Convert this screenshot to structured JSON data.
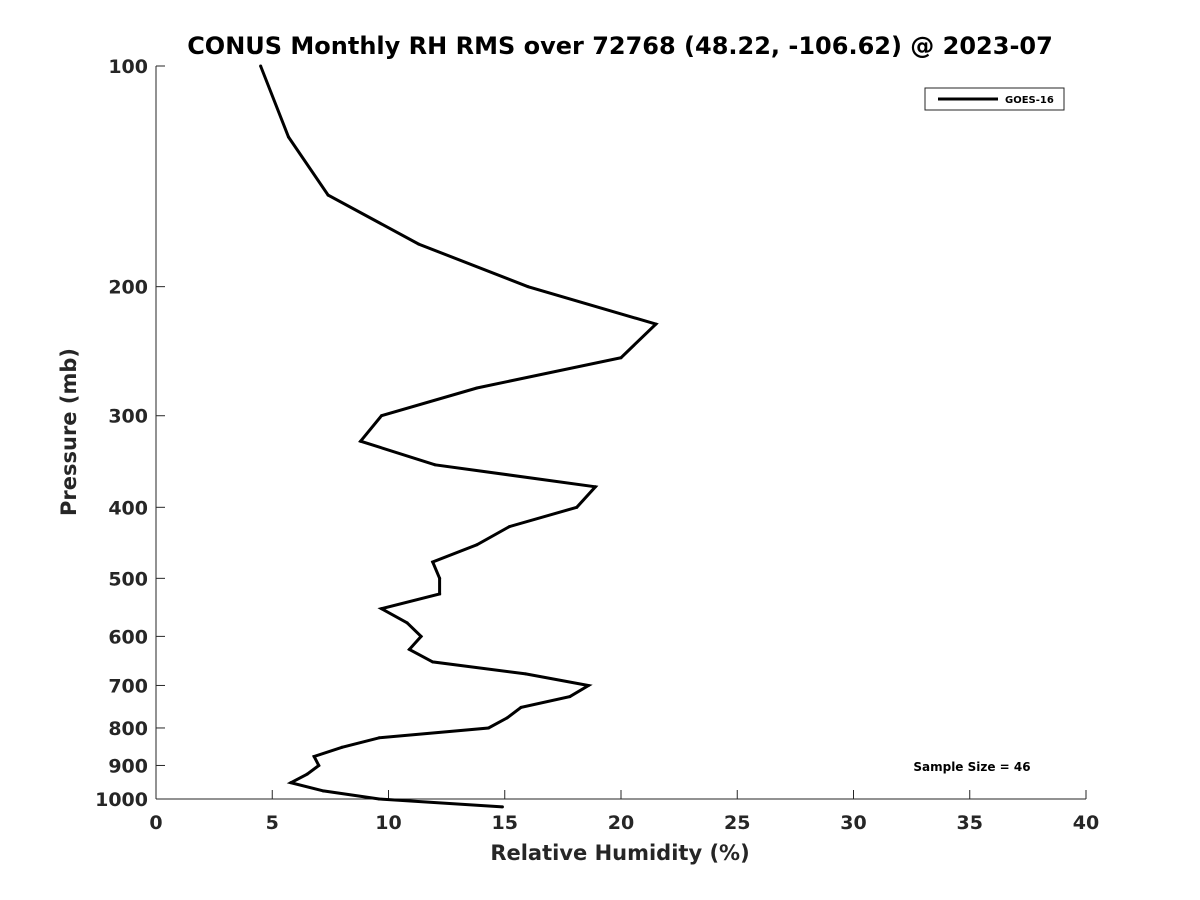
{
  "chart_data": {
    "type": "line",
    "title": "CONUS Monthly RH RMS over 72768 (48.22, -106.62) @ 2023-07",
    "xlabel": "Relative Humidity (%)",
    "ylabel": "Pressure (mb)",
    "xlim": [
      0,
      40
    ],
    "ylim": [
      100,
      1000
    ],
    "y_scale": "log",
    "y_reversed": true,
    "grid": false,
    "legend_position": "top-right",
    "x_ticks": [
      0,
      5,
      10,
      15,
      20,
      25,
      30,
      35,
      40
    ],
    "y_ticks": [
      100,
      200,
      300,
      400,
      500,
      600,
      700,
      800,
      900,
      1000
    ],
    "series": [
      {
        "name": "GOES-16",
        "color": "#000000",
        "points": [
          {
            "x": 4.5,
            "y": 100
          },
          {
            "x": 5.7,
            "y": 125
          },
          {
            "x": 7.4,
            "y": 150
          },
          {
            "x": 11.3,
            "y": 175
          },
          {
            "x": 16.0,
            "y": 200
          },
          {
            "x": 21.5,
            "y": 225
          },
          {
            "x": 20.0,
            "y": 250
          },
          {
            "x": 13.8,
            "y": 275
          },
          {
            "x": 9.7,
            "y": 300
          },
          {
            "x": 8.8,
            "y": 325
          },
          {
            "x": 12.0,
            "y": 350
          },
          {
            "x": 18.9,
            "y": 375
          },
          {
            "x": 18.1,
            "y": 400
          },
          {
            "x": 15.2,
            "y": 425
          },
          {
            "x": 13.8,
            "y": 450
          },
          {
            "x": 11.9,
            "y": 475
          },
          {
            "x": 12.2,
            "y": 500
          },
          {
            "x": 12.2,
            "y": 525
          },
          {
            "x": 9.7,
            "y": 550
          },
          {
            "x": 10.8,
            "y": 575
          },
          {
            "x": 11.4,
            "y": 600
          },
          {
            "x": 10.9,
            "y": 625
          },
          {
            "x": 11.9,
            "y": 650
          },
          {
            "x": 15.9,
            "y": 675
          },
          {
            "x": 18.6,
            "y": 700
          },
          {
            "x": 17.8,
            "y": 725
          },
          {
            "x": 15.7,
            "y": 750
          },
          {
            "x": 15.1,
            "y": 775
          },
          {
            "x": 14.3,
            "y": 800
          },
          {
            "x": 9.6,
            "y": 825
          },
          {
            "x": 8.0,
            "y": 850
          },
          {
            "x": 6.8,
            "y": 875
          },
          {
            "x": 7.0,
            "y": 900
          },
          {
            "x": 6.5,
            "y": 925
          },
          {
            "x": 5.8,
            "y": 950
          },
          {
            "x": 7.2,
            "y": 975
          },
          {
            "x": 9.6,
            "y": 1000
          },
          {
            "x": 14.9,
            "y": 1025
          }
        ]
      }
    ],
    "annotations": [
      "Sample Size = 46"
    ]
  }
}
